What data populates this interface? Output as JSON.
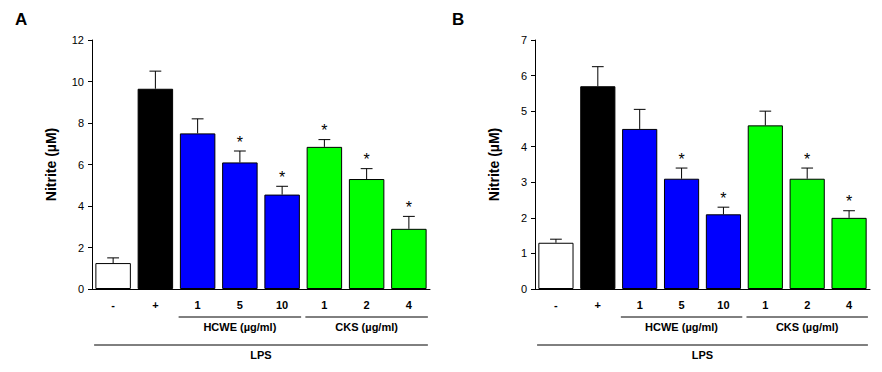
{
  "chart_data": [
    {
      "type": "bar",
      "title": "A",
      "ylabel": "Nitrite (µM)",
      "categories": [
        "-",
        "+",
        "1",
        "5",
        "10",
        "1",
        "2",
        "4"
      ],
      "values": [
        1.25,
        9.65,
        7.5,
        6.1,
        4.55,
        6.85,
        5.3,
        2.9
      ],
      "errors": [
        0.25,
        0.85,
        0.7,
        0.55,
        0.4,
        0.35,
        0.5,
        0.6
      ],
      "colors": [
        "#ffffff",
        "#000000",
        "#0000ff",
        "#0000ff",
        "#0000ff",
        "#00ff00",
        "#00ff00",
        "#00ff00"
      ],
      "significant": [
        false,
        false,
        false,
        true,
        true,
        true,
        true,
        true
      ],
      "significance_label": "*",
      "dose_groups": [
        {
          "label": "HCWE (µg/ml)",
          "from": 2,
          "to": 4
        },
        {
          "label": "CKS (µg/ml)",
          "from": 5,
          "to": 7
        }
      ],
      "treatment": {
        "label": "LPS",
        "from": 0,
        "to": 7
      },
      "ylim": [
        0,
        12
      ],
      "yticks": [
        0,
        2,
        4,
        6,
        8,
        10,
        12
      ],
      "grid": false
    },
    {
      "type": "bar",
      "title": "B",
      "ylabel": "Nitrite (µM)",
      "categories": [
        "-",
        "+",
        "1",
        "5",
        "10",
        "1",
        "2",
        "4"
      ],
      "values": [
        1.3,
        5.7,
        4.5,
        3.1,
        2.1,
        4.6,
        3.1,
        2.0
      ],
      "errors": [
        0.1,
        0.55,
        0.55,
        0.3,
        0.2,
        0.4,
        0.3,
        0.2
      ],
      "colors": [
        "#ffffff",
        "#000000",
        "#0000ff",
        "#0000ff",
        "#0000ff",
        "#00ff00",
        "#00ff00",
        "#00ff00"
      ],
      "significant": [
        false,
        false,
        false,
        true,
        true,
        false,
        true,
        true
      ],
      "significance_label": "*",
      "dose_groups": [
        {
          "label": "HCWE (µg/ml)",
          "from": 2,
          "to": 4
        },
        {
          "label": "CKS (µg/ml)",
          "from": 5,
          "to": 7
        }
      ],
      "treatment": {
        "label": "LPS",
        "from": 0,
        "to": 7
      },
      "ylim": [
        0,
        7
      ],
      "yticks": [
        0,
        1,
        2,
        3,
        4,
        5,
        6,
        7
      ],
      "grid": false
    }
  ]
}
